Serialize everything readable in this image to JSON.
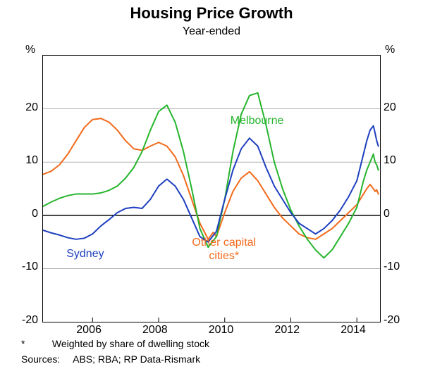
{
  "title": "Housing Price Growth",
  "subtitle": "Year-ended",
  "title_fontsize": 22,
  "subtitle_fontsize": 16,
  "unit_label": "%",
  "plot": {
    "x_start": 2004.5,
    "x_end": 2014.7,
    "ylim": [
      -20,
      30
    ],
    "yticks": [
      -20,
      -10,
      0,
      10,
      20
    ],
    "xticks": [
      2006,
      2008,
      2010,
      2012,
      2014
    ],
    "tick_fontsize": 16,
    "background_color": "#ffffff",
    "grid_color": "#808080",
    "zero_line_color": "#000000",
    "zero_line_width": 1.5,
    "line_width": 2
  },
  "series": {
    "sydney": {
      "label": "Sydney",
      "color": "#1e3fbf",
      "label_x": 2005.8,
      "label_y": -7.5,
      "data": [
        [
          2004.5,
          -2.8
        ],
        [
          2004.75,
          -3.3
        ],
        [
          2005.0,
          -3.7
        ],
        [
          2005.25,
          -4.2
        ],
        [
          2005.5,
          -4.5
        ],
        [
          2005.75,
          -4.3
        ],
        [
          2006.0,
          -3.5
        ],
        [
          2006.25,
          -2.0
        ],
        [
          2006.5,
          -0.8
        ],
        [
          2006.75,
          0.5
        ],
        [
          2007.0,
          1.3
        ],
        [
          2007.25,
          1.5
        ],
        [
          2007.5,
          1.3
        ],
        [
          2007.75,
          3.0
        ],
        [
          2008.0,
          5.5
        ],
        [
          2008.25,
          6.8
        ],
        [
          2008.5,
          5.5
        ],
        [
          2008.75,
          3.0
        ],
        [
          2009.0,
          -0.5
        ],
        [
          2009.25,
          -4.0
        ],
        [
          2009.5,
          -5.0
        ],
        [
          2009.75,
          -3.0
        ],
        [
          2010.0,
          3.0
        ],
        [
          2010.25,
          8.5
        ],
        [
          2010.5,
          12.5
        ],
        [
          2010.75,
          14.5
        ],
        [
          2011.0,
          13.0
        ],
        [
          2011.25,
          9.0
        ],
        [
          2011.5,
          5.5
        ],
        [
          2011.75,
          3.0
        ],
        [
          2012.0,
          0.5
        ],
        [
          2012.25,
          -1.5
        ],
        [
          2012.5,
          -2.5
        ],
        [
          2012.75,
          -3.5
        ],
        [
          2013.0,
          -2.5
        ],
        [
          2013.25,
          -1.0
        ],
        [
          2013.5,
          1.0
        ],
        [
          2013.75,
          3.5
        ],
        [
          2014.0,
          6.5
        ],
        [
          2014.1,
          9.0
        ],
        [
          2014.2,
          11.5
        ],
        [
          2014.3,
          14.0
        ],
        [
          2014.4,
          16.0
        ],
        [
          2014.5,
          16.8
        ],
        [
          2014.55,
          15.5
        ],
        [
          2014.6,
          14.0
        ],
        [
          2014.65,
          13.0
        ]
      ]
    },
    "melbourne": {
      "label": "Melbourne",
      "color": "#26b52d",
      "label_x": 2011.0,
      "label_y": 17.5,
      "data": [
        [
          2004.5,
          1.7
        ],
        [
          2004.75,
          2.5
        ],
        [
          2005.0,
          3.2
        ],
        [
          2005.25,
          3.7
        ],
        [
          2005.5,
          4.0
        ],
        [
          2005.75,
          4.0
        ],
        [
          2006.0,
          4.0
        ],
        [
          2006.25,
          4.2
        ],
        [
          2006.5,
          4.7
        ],
        [
          2006.75,
          5.5
        ],
        [
          2007.0,
          7.0
        ],
        [
          2007.25,
          9.0
        ],
        [
          2007.5,
          12.0
        ],
        [
          2007.75,
          16.0
        ],
        [
          2008.0,
          19.5
        ],
        [
          2008.25,
          20.7
        ],
        [
          2008.5,
          17.5
        ],
        [
          2008.75,
          12.0
        ],
        [
          2009.0,
          5.0
        ],
        [
          2009.25,
          -2.5
        ],
        [
          2009.5,
          -6.0
        ],
        [
          2009.75,
          -4.0
        ],
        [
          2010.0,
          3.0
        ],
        [
          2010.25,
          12.0
        ],
        [
          2010.5,
          19.0
        ],
        [
          2010.75,
          22.5
        ],
        [
          2011.0,
          23.0
        ],
        [
          2011.25,
          17.0
        ],
        [
          2011.5,
          10.0
        ],
        [
          2011.75,
          5.0
        ],
        [
          2012.0,
          1.0
        ],
        [
          2012.25,
          -2.0
        ],
        [
          2012.5,
          -4.5
        ],
        [
          2012.75,
          -6.5
        ],
        [
          2013.0,
          -8.0
        ],
        [
          2013.25,
          -6.5
        ],
        [
          2013.5,
          -4.0
        ],
        [
          2013.75,
          -1.5
        ],
        [
          2014.0,
          1.5
        ],
        [
          2014.1,
          4.0
        ],
        [
          2014.2,
          6.5
        ],
        [
          2014.3,
          8.5
        ],
        [
          2014.4,
          10.0
        ],
        [
          2014.5,
          11.5
        ],
        [
          2014.55,
          10.0
        ],
        [
          2014.6,
          9.5
        ],
        [
          2014.65,
          8.5
        ]
      ]
    },
    "other": {
      "label": "Other capital cities*",
      "label2": "cities*",
      "color": "#f26a1b",
      "label_x": 2010.0,
      "label_y": -5.5,
      "data": [
        [
          2004.5,
          7.7
        ],
        [
          2004.75,
          8.3
        ],
        [
          2005.0,
          9.5
        ],
        [
          2005.25,
          11.5
        ],
        [
          2005.5,
          14.0
        ],
        [
          2005.75,
          16.5
        ],
        [
          2006.0,
          18.0
        ],
        [
          2006.25,
          18.2
        ],
        [
          2006.5,
          17.5
        ],
        [
          2006.75,
          16.0
        ],
        [
          2007.0,
          14.0
        ],
        [
          2007.25,
          12.5
        ],
        [
          2007.5,
          12.2
        ],
        [
          2007.75,
          13.0
        ],
        [
          2008.0,
          13.7
        ],
        [
          2008.25,
          13.0
        ],
        [
          2008.5,
          11.0
        ],
        [
          2008.75,
          7.5
        ],
        [
          2009.0,
          3.0
        ],
        [
          2009.25,
          -1.5
        ],
        [
          2009.5,
          -4.5
        ],
        [
          2009.65,
          -3.2
        ],
        [
          2009.75,
          -4.0
        ],
        [
          2010.0,
          0.5
        ],
        [
          2010.25,
          4.5
        ],
        [
          2010.5,
          7.0
        ],
        [
          2010.75,
          8.2
        ],
        [
          2011.0,
          6.5
        ],
        [
          2011.25,
          4.0
        ],
        [
          2011.5,
          1.5
        ],
        [
          2011.75,
          -0.5
        ],
        [
          2012.0,
          -2.0
        ],
        [
          2012.25,
          -3.5
        ],
        [
          2012.5,
          -4.2
        ],
        [
          2012.75,
          -4.5
        ],
        [
          2013.0,
          -3.5
        ],
        [
          2013.25,
          -2.5
        ],
        [
          2013.5,
          -1.0
        ],
        [
          2013.75,
          0.5
        ],
        [
          2014.0,
          2.0
        ],
        [
          2014.1,
          3.0
        ],
        [
          2014.2,
          4.0
        ],
        [
          2014.3,
          5.0
        ],
        [
          2014.4,
          5.8
        ],
        [
          2014.5,
          5.0
        ],
        [
          2014.55,
          4.5
        ],
        [
          2014.6,
          4.8
        ],
        [
          2014.65,
          4.0
        ]
      ]
    }
  },
  "footnote_marker": "*",
  "footnote_text": "Weighted by share of dwelling stock",
  "sources_label": "Sources:",
  "sources_text": "ABS; RBA; RP Data-Rismark",
  "footnote_fontsize": 14
}
